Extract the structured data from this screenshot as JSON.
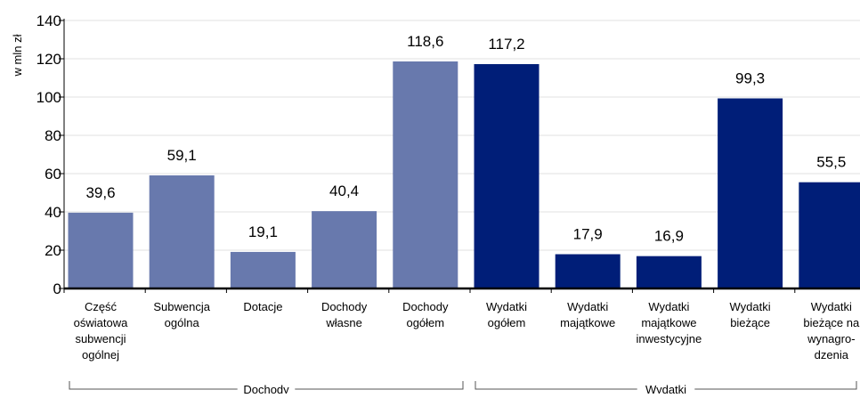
{
  "chart_data": {
    "type": "bar",
    "ylabel": "w mln zł",
    "ylim": [
      0,
      140
    ],
    "yticks": [
      0,
      20,
      40,
      60,
      80,
      100,
      120,
      140
    ],
    "grid": true,
    "categories": [
      [
        "Część",
        "oświatowa",
        "subwencji",
        "ogólnej"
      ],
      [
        "Subwencja",
        "ogólna"
      ],
      [
        "Dotacje"
      ],
      [
        "Dochody",
        "własne"
      ],
      [
        "Dochody",
        "ogółem"
      ],
      [
        "Wydatki",
        "ogółem"
      ],
      [
        "Wydatki",
        "majątkowe"
      ],
      [
        "Wydatki",
        "majątkowe",
        "inwestycyjne"
      ],
      [
        "Wydatki",
        "bieżące"
      ],
      [
        "Wydatki",
        "bieżące na",
        "wynagro-",
        "dzenia"
      ]
    ],
    "values": [
      39.6,
      59.1,
      19.1,
      40.4,
      118.6,
      117.2,
      17.9,
      16.9,
      99.3,
      55.5
    ],
    "value_labels": [
      "39,6",
      "59,1",
      "19,1",
      "40,4",
      "118,6",
      "117,2",
      "17,9",
      "16,9",
      "99,3",
      "55,5"
    ],
    "groups": [
      {
        "label": "Dochody",
        "start": 0,
        "end": 4,
        "color": "#6879ad"
      },
      {
        "label": "Wydatki",
        "start": 5,
        "end": 9,
        "color": "#001e78"
      }
    ]
  }
}
